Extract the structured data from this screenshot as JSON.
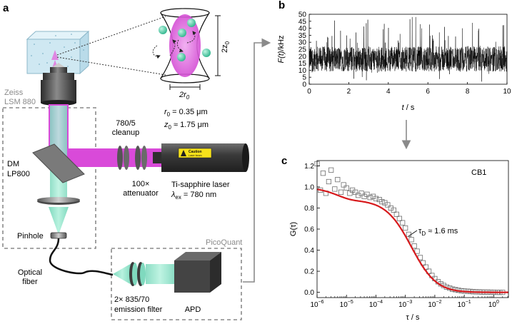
{
  "panel_labels": {
    "a": "a",
    "b": "b",
    "c": "c"
  },
  "labels": {
    "zeiss": "Zeiss",
    "lsm": "LSM 880",
    "dm": "DM",
    "lp800": "LP800",
    "pinhole": "Pinhole",
    "optical": "Optical",
    "fiber": "fiber",
    "cleanup_num": "780/5",
    "cleanup": "cleanup",
    "attenuator_num": "100×",
    "attenuator": "attenuator",
    "laser_name": "Ti-sapphire laser",
    "laser_lambda_sym": "λ",
    "laser_lambda_sub": "ex",
    "laser_lambda_val": " = 780 nm",
    "caution": "Caution",
    "caution_sub": "Laser beam",
    "picoquant": "PicoQuant",
    "emission_num": "2× 835/70",
    "emission": "emission filter",
    "apd": "APD",
    "z_dim": "2z",
    "z_sub": "0",
    "r_dim": "2r",
    "r_sub": "0",
    "r0_sym": "r",
    "r0_sub": "0",
    "r0_val": " = 0.35 μm",
    "z0_sym": "z",
    "z0_sub": "0",
    "z0_val": " ≈ 1.75 μm"
  },
  "chart_data": [
    {
      "type": "line",
      "panel": "b",
      "xlabel_sym": "t",
      "xlabel_unit": " / s",
      "ylabel_sym": "F(t)",
      "ylabel_unit": "/kHz",
      "xlim": [
        0,
        10
      ],
      "ylim": [
        0,
        50
      ],
      "xticks": [
        "0",
        "2",
        "4",
        "6",
        "8",
        "10"
      ],
      "yticks": [
        "0",
        "5",
        "10",
        "15",
        "20",
        "25",
        "30",
        "35",
        "40",
        "45",
        "50"
      ],
      "series_color": "#000000",
      "baseline_kHz": 18
    },
    {
      "type": "scatter",
      "panel": "c",
      "annotation": "CB1",
      "tau_label_sym": "τ",
      "tau_label_sub": "D",
      "tau_label_val": " ≈ 1.6 ms",
      "xlabel": "τ / s",
      "ylabel": "G(τ)",
      "xscale": "log",
      "xlim_exp": [
        -6,
        0.5
      ],
      "ylim": [
        -0.05,
        1.25
      ],
      "xtick_exps": [
        -6,
        -5,
        -4,
        -3,
        -2,
        -1,
        0
      ],
      "yticks": [
        "0.0",
        "0.2",
        "0.4",
        "0.6",
        "0.8",
        "1.0",
        "1.2"
      ],
      "fit_color": "#d7191c",
      "marker": "open-square",
      "fit": {
        "G0": 1.0,
        "tau_D_s": 0.0016,
        "trip_T": 0.12,
        "tau_trip_s": 5e-06
      },
      "data": [
        {
          "x": 1e-06,
          "y": 1.22
        },
        {
          "x": 1.3e-06,
          "y": 0.97
        },
        {
          "x": 1.6e-06,
          "y": 1.13
        },
        {
          "x": 2e-06,
          "y": 0.94
        },
        {
          "x": 2.5e-06,
          "y": 1.05
        },
        {
          "x": 3e-06,
          "y": 1.16
        },
        {
          "x": 4e-06,
          "y": 0.98
        },
        {
          "x": 5e-06,
          "y": 1.07
        },
        {
          "x": 6.5e-06,
          "y": 0.95
        },
        {
          "x": 8e-06,
          "y": 1.02
        },
        {
          "x": 1e-05,
          "y": 0.99
        },
        {
          "x": 1.3e-05,
          "y": 0.94
        },
        {
          "x": 1.6e-05,
          "y": 0.97
        },
        {
          "x": 2e-05,
          "y": 0.95
        },
        {
          "x": 2.5e-05,
          "y": 0.92
        },
        {
          "x": 3.2e-05,
          "y": 0.94
        },
        {
          "x": 4e-05,
          "y": 0.91
        },
        {
          "x": 5e-05,
          "y": 0.93
        },
        {
          "x": 6.3e-05,
          "y": 0.9
        },
        {
          "x": 8e-05,
          "y": 0.91
        },
        {
          "x": 0.0001,
          "y": 0.89
        },
        {
          "x": 0.00013,
          "y": 0.88
        },
        {
          "x": 0.00016,
          "y": 0.86
        },
        {
          "x": 0.0002,
          "y": 0.85
        },
        {
          "x": 0.00025,
          "y": 0.83
        },
        {
          "x": 0.00032,
          "y": 0.8
        },
        {
          "x": 0.0004,
          "y": 0.78
        },
        {
          "x": 0.0005,
          "y": 0.74
        },
        {
          "x": 0.00063,
          "y": 0.7
        },
        {
          "x": 0.0008,
          "y": 0.66
        },
        {
          "x": 0.001,
          "y": 0.61
        },
        {
          "x": 0.0013,
          "y": 0.55
        },
        {
          "x": 0.0016,
          "y": 0.5
        },
        {
          "x": 0.002,
          "y": 0.44
        },
        {
          "x": 0.0025,
          "y": 0.39
        },
        {
          "x": 0.0032,
          "y": 0.33
        },
        {
          "x": 0.004,
          "y": 0.28
        },
        {
          "x": 0.005,
          "y": 0.24
        },
        {
          "x": 0.0063,
          "y": 0.2
        },
        {
          "x": 0.008,
          "y": 0.16
        },
        {
          "x": 0.01,
          "y": 0.13
        },
        {
          "x": 0.013,
          "y": 0.1
        },
        {
          "x": 0.016,
          "y": 0.08
        },
        {
          "x": 0.02,
          "y": 0.065
        },
        {
          "x": 0.025,
          "y": 0.05
        },
        {
          "x": 0.032,
          "y": 0.04
        },
        {
          "x": 0.04,
          "y": 0.03
        },
        {
          "x": 0.05,
          "y": 0.025
        },
        {
          "x": 0.063,
          "y": 0.02
        },
        {
          "x": 0.08,
          "y": 0.015
        },
        {
          "x": 0.1,
          "y": 0.012
        },
        {
          "x": 0.13,
          "y": 0.01
        },
        {
          "x": 0.16,
          "y": 0.008
        },
        {
          "x": 0.2,
          "y": 0.006
        },
        {
          "x": 0.25,
          "y": 0.005
        },
        {
          "x": 0.32,
          "y": 0.004
        },
        {
          "x": 0.4,
          "y": 0.003
        },
        {
          "x": 0.5,
          "y": 0.002
        },
        {
          "x": 0.63,
          "y": 0.002
        },
        {
          "x": 0.8,
          "y": 0.001
        },
        {
          "x": 1.0,
          "y": 0.001
        },
        {
          "x": 1.3,
          "y": 0.0
        },
        {
          "x": 1.6,
          "y": 0.0
        },
        {
          "x": 2.0,
          "y": 0.0
        }
      ]
    }
  ],
  "colors": {
    "magenta": "#d94ad9",
    "teal": "#8fe3c8",
    "dark_grey": "#3a3a3a",
    "box_dash": "#8a8a8a",
    "cube": "#cfe8f2",
    "caution_yellow": "#f7e21a"
  }
}
